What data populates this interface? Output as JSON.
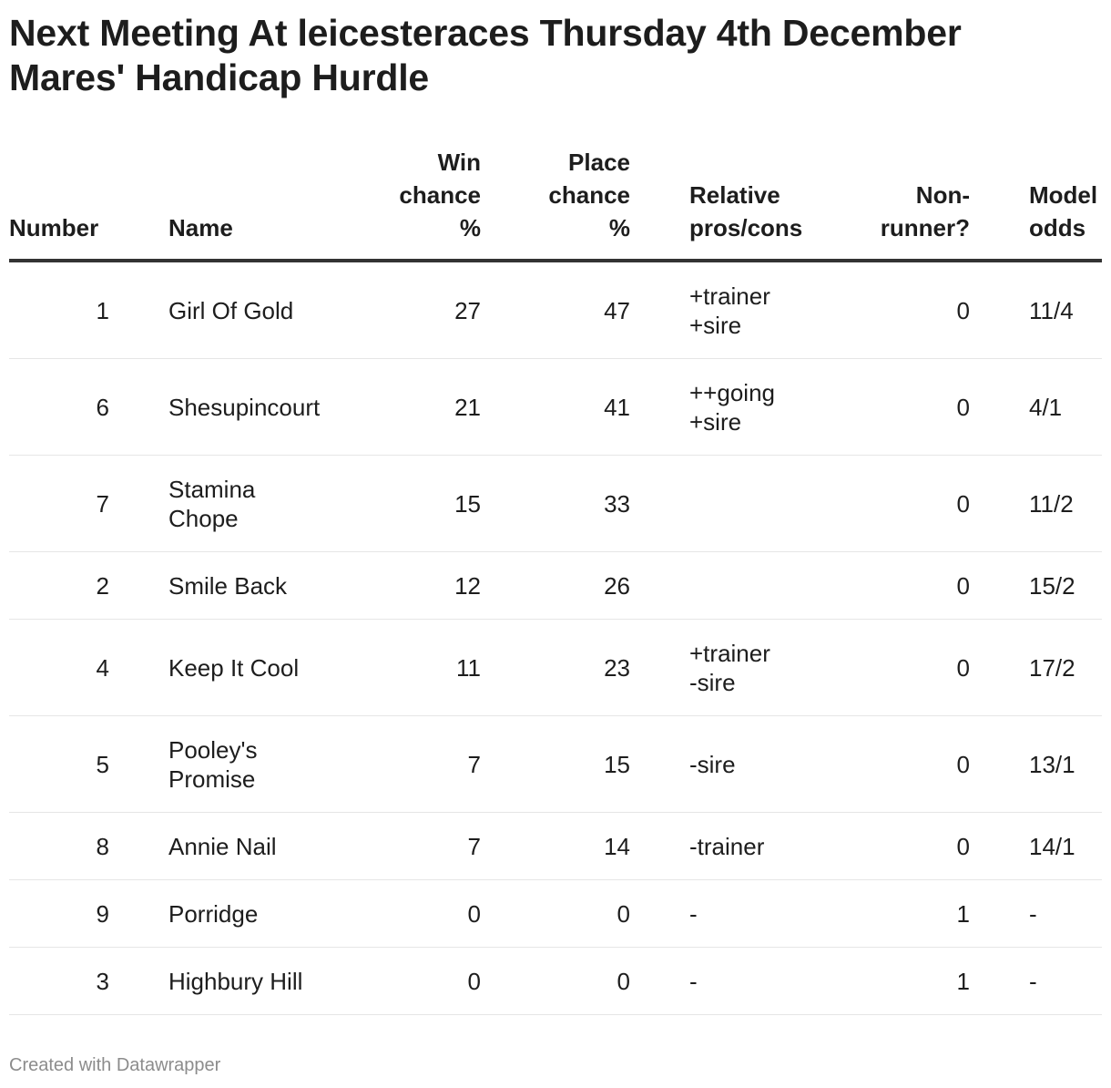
{
  "title_lines": [
    "Next Meeting At leicesteraces Thursday 4th December",
    "Mares' Handicap Hurdle"
  ],
  "columns": {
    "number": [
      "Number"
    ],
    "name": [
      "Name"
    ],
    "win": [
      "Win",
      "chance",
      "%"
    ],
    "place": [
      "Place",
      "chance",
      "%"
    ],
    "relative": [
      "Relative",
      "pros/cons"
    ],
    "nonrunner": [
      "Non-",
      "runner?"
    ],
    "odds": [
      "Model",
      "odds"
    ]
  },
  "chart_data": {
    "type": "table",
    "title": "Next Meeting At leicesteraces Thursday 4th December Mares' Handicap Hurdle",
    "headers": [
      "Number",
      "Name",
      "Win chance %",
      "Place chance %",
      "Relative pros/cons",
      "Non-runner?",
      "Model odds"
    ],
    "rows": [
      {
        "number": "1",
        "name": [
          "Girl Of Gold"
        ],
        "win": "27",
        "place": "47",
        "relative": [
          "+trainer",
          "+sire"
        ],
        "nonrunner": "0",
        "odds": "11/4"
      },
      {
        "number": "6",
        "name": [
          "Shesupincourt"
        ],
        "win": "21",
        "place": "41",
        "relative": [
          "++going",
          "+sire"
        ],
        "nonrunner": "0",
        "odds": "4/1"
      },
      {
        "number": "7",
        "name": [
          "Stamina",
          "Chope"
        ],
        "win": "15",
        "place": "33",
        "relative": [],
        "nonrunner": "0",
        "odds": "11/2"
      },
      {
        "number": "2",
        "name": [
          "Smile Back"
        ],
        "win": "12",
        "place": "26",
        "relative": [],
        "nonrunner": "0",
        "odds": "15/2"
      },
      {
        "number": "4",
        "name": [
          "Keep It Cool"
        ],
        "win": "11",
        "place": "23",
        "relative": [
          "+trainer",
          "-sire"
        ],
        "nonrunner": "0",
        "odds": "17/2"
      },
      {
        "number": "5",
        "name": [
          "Pooley's",
          "Promise"
        ],
        "win": "7",
        "place": "15",
        "relative": [
          "-sire"
        ],
        "nonrunner": "0",
        "odds": "13/1"
      },
      {
        "number": "8",
        "name": [
          "Annie Nail"
        ],
        "win": "7",
        "place": "14",
        "relative": [
          "-trainer"
        ],
        "nonrunner": "0",
        "odds": "14/1"
      },
      {
        "number": "9",
        "name": [
          "Porridge"
        ],
        "win": "0",
        "place": "0",
        "relative": [
          "-"
        ],
        "nonrunner": "1",
        "odds": "-"
      },
      {
        "number": "3",
        "name": [
          "Highbury Hill"
        ],
        "win": "0",
        "place": "0",
        "relative": [
          "-"
        ],
        "nonrunner": "1",
        "odds": "-"
      }
    ]
  },
  "footer": "Created with Datawrapper"
}
